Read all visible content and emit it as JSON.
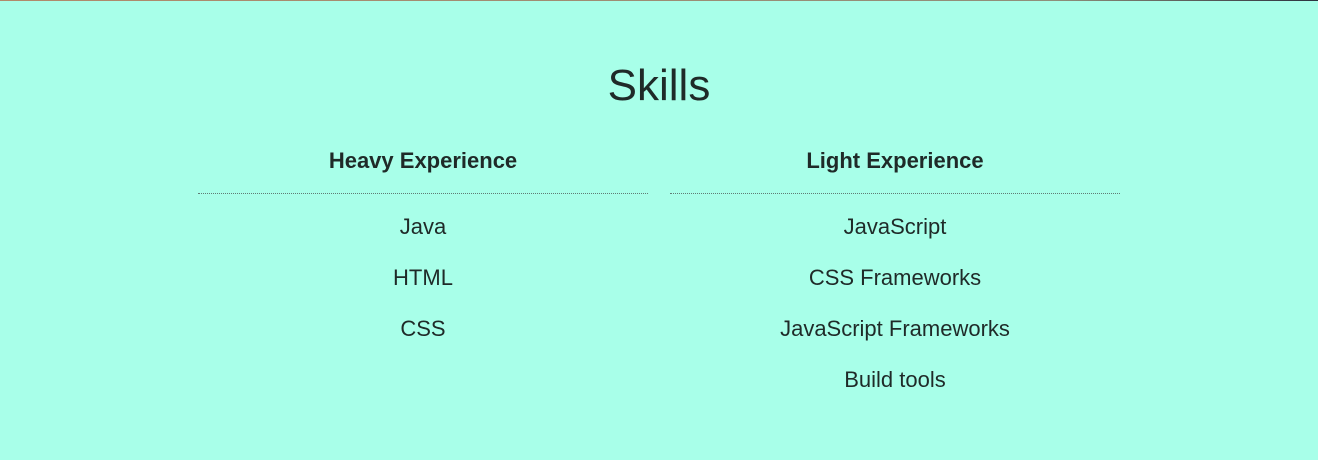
{
  "page": {
    "title": "Skills",
    "background": "#a8ffe9",
    "text_color": "#1f2a28",
    "divider_color": "#607c75"
  },
  "columns": [
    {
      "heading": "Heavy Experience",
      "items": [
        "Java",
        "HTML",
        "CSS"
      ]
    },
    {
      "heading": "Light Experience",
      "items": [
        "JavaScript",
        "CSS Frameworks",
        "JavaScript Frameworks",
        "Build tools"
      ]
    }
  ]
}
